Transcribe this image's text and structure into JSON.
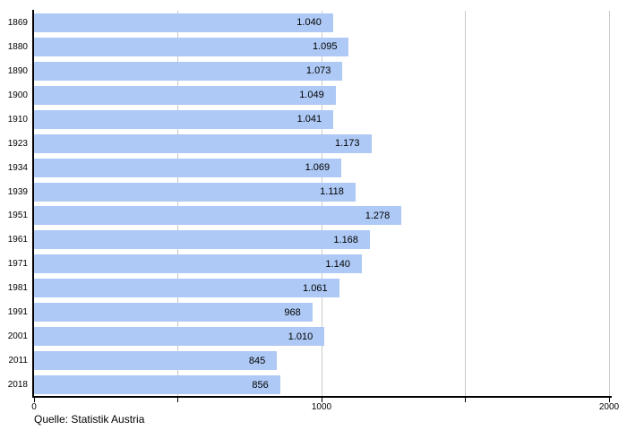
{
  "chart_data": {
    "type": "bar",
    "orientation": "horizontal",
    "title": "",
    "xlabel": "",
    "ylabel": "",
    "categories": [
      "1869",
      "1880",
      "1890",
      "1900",
      "1910",
      "1923",
      "1934",
      "1939",
      "1951",
      "1961",
      "1971",
      "1981",
      "1991",
      "2001",
      "2011",
      "2018"
    ],
    "values": [
      1040,
      1095,
      1073,
      1049,
      1041,
      1173,
      1069,
      1118,
      1278,
      1168,
      1140,
      1061,
      968,
      1010,
      845,
      856
    ],
    "value_labels": [
      "1.040",
      "1.095",
      "1.073",
      "1.049",
      "1.041",
      "1.173",
      "1.069",
      "1.118",
      "1.278",
      "1.168",
      "1.140",
      "1.061",
      "968",
      "1.010",
      "845",
      "856"
    ],
    "xlim": [
      0,
      2000
    ],
    "x_ticks": [
      0,
      500,
      1000,
      1500,
      2000
    ],
    "x_tick_labels": [
      "0",
      "",
      "1000",
      "",
      "2000"
    ],
    "gridlines": [
      500,
      1000,
      1500,
      2000
    ],
    "legend": "none",
    "grid": "vertical",
    "colors": {
      "bar": "#AEC9F5",
      "gridline": "#C9C9C9",
      "axis": "#000000",
      "text": "#000000",
      "background": "#FFFFFF"
    }
  },
  "footer": {
    "source": "Quelle: Statistik Austria"
  }
}
